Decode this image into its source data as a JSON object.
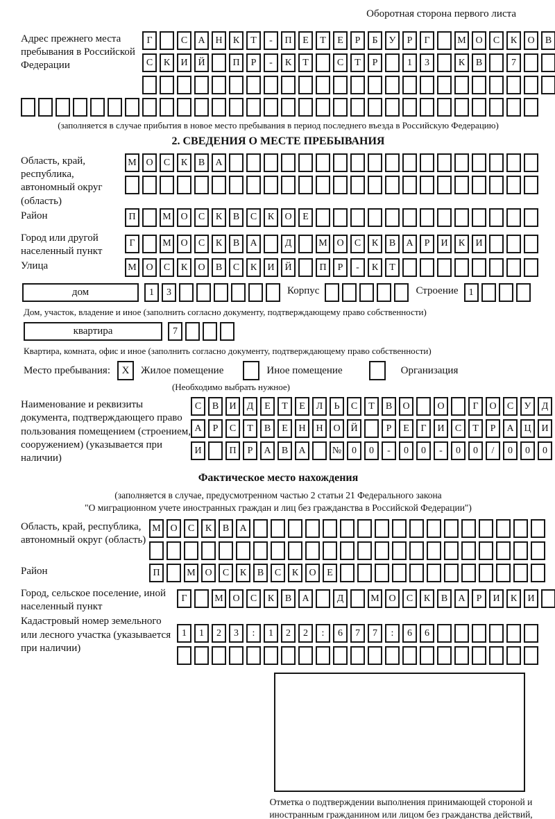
{
  "page": {
    "header_note": "Оборотная сторона первого листа"
  },
  "previous_address": {
    "label": "Адрес прежнего места пребывания в Российской Федерации",
    "row1": [
      "Г",
      "",
      "С",
      "А",
      "Н",
      "К",
      "Т",
      "-",
      "П",
      "Е",
      "Т",
      "Е",
      "Р",
      "Б",
      "У",
      "Р",
      "Г",
      "",
      "М",
      "О",
      "С",
      "К",
      "О",
      "В"
    ],
    "row2": [
      "С",
      "К",
      "И",
      "Й",
      "",
      "П",
      "Р",
      "-",
      "К",
      "Т",
      "",
      "С",
      "Т",
      "Р",
      "",
      "1",
      "3",
      "",
      "К",
      "В",
      "",
      "7",
      "",
      ""
    ],
    "row3": [
      "",
      "",
      "",
      "",
      "",
      "",
      "",
      "",
      "",
      "",
      "",
      "",
      "",
      "",
      "",
      "",
      "",
      "",
      "",
      "",
      "",
      "",
      "",
      ""
    ],
    "row4": [
      "",
      "",
      "",
      "",
      "",
      "",
      "",
      "",
      "",
      "",
      "",
      "",
      "",
      "",
      "",
      "",
      "",
      "",
      "",
      "",
      "",
      "",
      "",
      "",
      "",
      "",
      "",
      "",
      "",
      ""
    ],
    "note": "(заполняется в случае прибытия в новое место пребывания в период последнего въезда в Российскую Федерацию)"
  },
  "section2": {
    "title": "2. СВЕДЕНИЯ О МЕСТЕ ПРЕБЫВАНИЯ",
    "region": {
      "label": "Область, край, республика, автономный округ (область)",
      "row1": [
        "М",
        "О",
        "С",
        "К",
        "В",
        "А",
        "",
        "",
        "",
        "",
        "",
        "",
        "",
        "",
        "",
        "",
        "",
        "",
        "",
        "",
        "",
        "",
        "",
        ""
      ],
      "row2": [
        "",
        "",
        "",
        "",
        "",
        "",
        "",
        "",
        "",
        "",
        "",
        "",
        "",
        "",
        "",
        "",
        "",
        "",
        "",
        "",
        "",
        "",
        "",
        ""
      ]
    },
    "district": {
      "label": "Район",
      "row": [
        "П",
        "",
        "М",
        "О",
        "С",
        "К",
        "В",
        "С",
        "К",
        "О",
        "Е",
        "",
        "",
        "",
        "",
        "",
        "",
        "",
        "",
        "",
        "",
        "",
        "",
        ""
      ]
    },
    "city": {
      "label": "Город или другой населенный пункт",
      "row": [
        "Г",
        "",
        "М",
        "О",
        "С",
        "К",
        "В",
        "А",
        "",
        "Д",
        "",
        "М",
        "О",
        "С",
        "К",
        "В",
        "А",
        "Р",
        "И",
        "К",
        "И",
        "",
        "",
        ""
      ]
    },
    "street": {
      "label": "Улица",
      "row": [
        "М",
        "О",
        "С",
        "К",
        "О",
        "В",
        "С",
        "К",
        "И",
        "Й",
        "",
        "П",
        "Р",
        "-",
        "К",
        "Т",
        "",
        "",
        "",
        "",
        "",
        "",
        "",
        ""
      ]
    },
    "house": {
      "box_label": "дом",
      "cells": [
        "1",
        "3",
        "",
        "",
        "",
        "",
        "",
        ""
      ],
      "korpus_label": "Корпус",
      "korpus_cells": [
        "",
        "",
        "",
        "",
        ""
      ],
      "stroenie_label": "Строение",
      "stroenie_cells": [
        "1",
        "",
        "",
        ""
      ],
      "note": "Дом, участок, владение и иное (заполнить согласно документу, подтверждающему право собственности)"
    },
    "apartment": {
      "box_label": "квартира",
      "cells": [
        "7",
        "",
        "",
        ""
      ],
      "note": "Квартира, комната, офис и иное (заполнить согласно документу, подтверждающему право собственности)"
    },
    "stay_type": {
      "label": "Место пребывания:",
      "options": [
        {
          "checked": "X",
          "label": "Жилое помещение"
        },
        {
          "checked": "",
          "label": "Иное помещение"
        },
        {
          "checked": "",
          "label": "Организация"
        }
      ],
      "note": "(Необходимо выбрать нужное)"
    },
    "document": {
      "label": "Наименование и реквизиты документа, подтверждающего право пользования помещением (строением, сооружением) (указывается при наличии)",
      "row1": [
        "С",
        "В",
        "И",
        "Д",
        "Е",
        "Т",
        "Е",
        "Л",
        "Ь",
        "С",
        "Т",
        "В",
        "О",
        "",
        "О",
        "",
        "Г",
        "О",
        "С",
        "У",
        "Д"
      ],
      "row2": [
        "А",
        "Р",
        "С",
        "Т",
        "В",
        "Е",
        "Н",
        "Н",
        "О",
        "Й",
        "",
        "Р",
        "Е",
        "Г",
        "И",
        "С",
        "Т",
        "Р",
        "А",
        "Ц",
        "И"
      ],
      "row3": [
        "И",
        "",
        "П",
        "Р",
        "А",
        "В",
        "А",
        "",
        "№",
        "0",
        "0",
        "-",
        "0",
        "0",
        "-",
        "0",
        "0",
        "/",
        "0",
        "0",
        "0"
      ]
    }
  },
  "actual_location": {
    "title": "Фактическое место нахождения",
    "note1": "(заполняется в случае, предусмотренном частью 2 статьи 21 Федерального закона",
    "note2": "\"О миграционном учете иностранных граждан и лиц без гражданства в Российской Федерации\")",
    "region": {
      "label": "Область, край, республика, автономный округ (область)",
      "row1": [
        "М",
        "О",
        "С",
        "К",
        "В",
        "А",
        "",
        "",
        "",
        "",
        "",
        "",
        "",
        "",
        "",
        "",
        "",
        "",
        "",
        "",
        "",
        "",
        ""
      ],
      "row2": [
        "",
        "",
        "",
        "",
        "",
        "",
        "",
        "",
        "",
        "",
        "",
        "",
        "",
        "",
        "",
        "",
        "",
        "",
        "",
        "",
        "",
        "",
        ""
      ]
    },
    "district": {
      "label": "Район",
      "row": [
        "П",
        "",
        "М",
        "О",
        "С",
        "К",
        "В",
        "С",
        "К",
        "О",
        "Е",
        "",
        "",
        "",
        "",
        "",
        "",
        "",
        "",
        "",
        "",
        "",
        ""
      ]
    },
    "city": {
      "label": "Город, сельское поселение, иной населенный пункт",
      "row": [
        "Г",
        "",
        "М",
        "О",
        "С",
        "К",
        "В",
        "А",
        "",
        "Д",
        "",
        "М",
        "О",
        "С",
        "К",
        "В",
        "А",
        "Р",
        "И",
        "К",
        "И",
        ""
      ]
    },
    "cadastre": {
      "label": "Кадастровый номер земельного или лесного участка (указывается при наличии)",
      "row1": [
        "1",
        "1",
        "2",
        "3",
        ":",
        "1",
        "2",
        "2",
        ":",
        "6",
        "7",
        "7",
        ":",
        "6",
        "6",
        "",
        "",
        "",
        "",
        "",
        ""
      ],
      "row2": [
        "",
        "",
        "",
        "",
        "",
        "",
        "",
        "",
        "",
        "",
        "",
        "",
        "",
        "",
        "",
        "",
        "",
        "",
        "",
        "",
        ""
      ]
    },
    "stamp_caption": "Отметка о подтверждении выполнения принимающей стороной и иностранным гражданином или лицом без гражданства действий, необходимых для его постановки на учет по месту пребывания"
  }
}
